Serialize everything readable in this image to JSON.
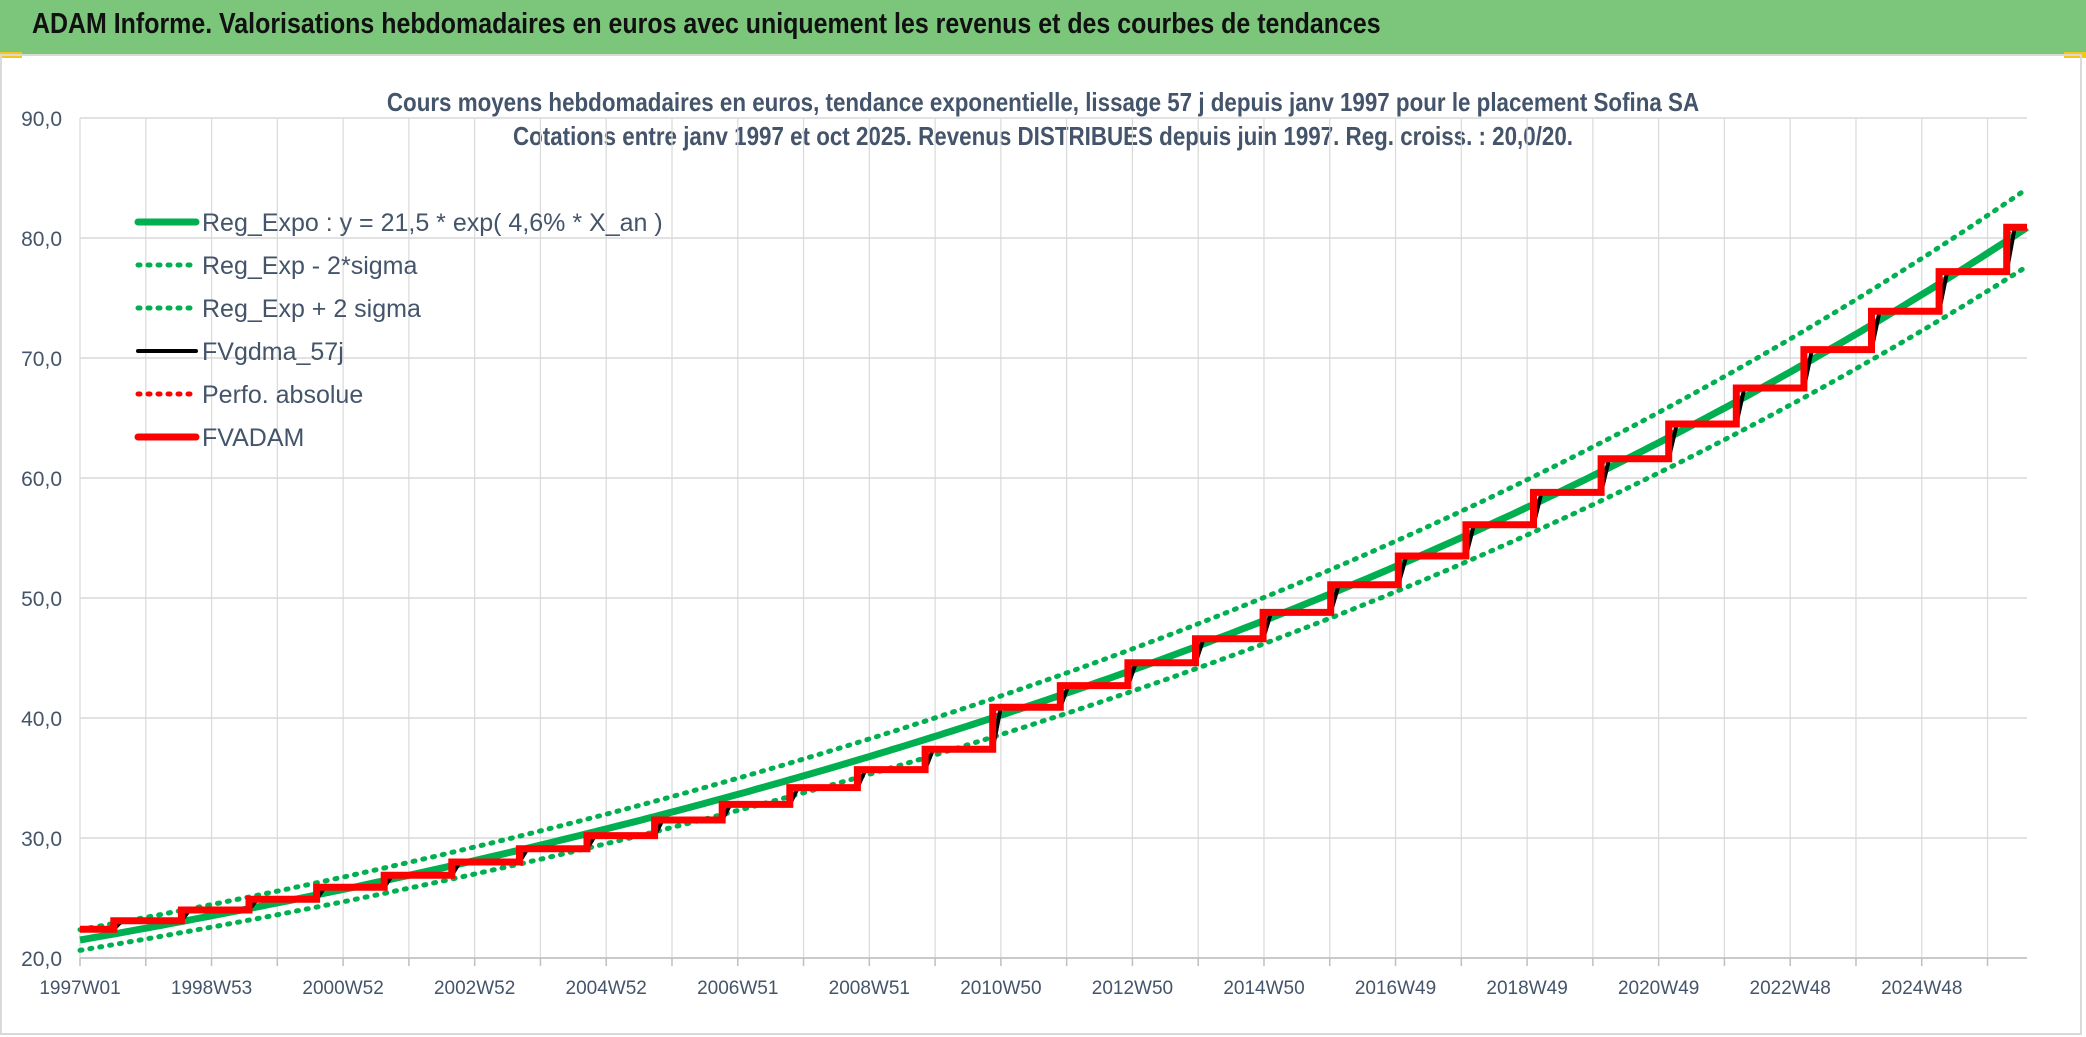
{
  "header": {
    "title": "ADAM Informe. Valorisations hebdomadaires en euros avec uniquement les revenus et des courbes de tendances"
  },
  "colors": {
    "banner": "#7bc67b",
    "reg_expo": "#00b050",
    "fvgdma": "#000000",
    "fvadam": "#ff0000",
    "grid": "#d9d9d9",
    "text": "#44546a"
  },
  "chart_data": {
    "type": "line",
    "title": "Cours moyens hebdomadaires en euros, tendance exponentielle, lissage 57 j depuis janv 1997 pour le placement Sofina SA",
    "subtitle": "Cotations entre janv 1997 et oct 2025. Revenus DISTRIBUES depuis juin 1997. Reg. croiss. : 20,0/20.",
    "xlabel": "",
    "ylabel": "",
    "ylim": [
      20,
      90
    ],
    "yticks": [
      "20,0",
      "30,0",
      "40,0",
      "50,0",
      "60,0",
      "70,0",
      "80,0",
      "90,0"
    ],
    "x_range_years": [
      1997.0,
      2025.8
    ],
    "xtick_labels": [
      "1997W01",
      "1998W53",
      "2000W52",
      "2002W52",
      "2004W52",
      "2006W51",
      "2008W51",
      "2010W50",
      "2012W50",
      "2014W50",
      "2016W49",
      "2018W49",
      "2020W49",
      "2022W48",
      "2024W48"
    ],
    "grid": true,
    "legend_position": "top-left",
    "regression": {
      "a": 21.5,
      "rate": 0.046,
      "sigma_factor": 0.04
    },
    "series": [
      {
        "name": "Reg_Expo : y = 21,5 * exp( 4,6% *  X_an )",
        "style": "solid-thick",
        "color": "#00b050"
      },
      {
        "name": "Reg_Exp - 2*sigma",
        "style": "dotted",
        "color": "#00b050"
      },
      {
        "name": "Reg_Exp + 2 sigma",
        "style": "dotted",
        "color": "#00b050"
      },
      {
        "name": "FVgdma_57j",
        "style": "solid",
        "color": "#000000"
      },
      {
        "name": "Perfo. absolue",
        "style": "dotted",
        "color": "#ff0000"
      },
      {
        "name": "FVADAM",
        "style": "solid-thick-step",
        "color": "#ff0000"
      }
    ],
    "fvadam_steps": [
      {
        "x": 1997.0,
        "y": 22.4
      },
      {
        "x": 1997.5,
        "y": 23.1
      },
      {
        "x": 1998.5,
        "y": 24.0
      },
      {
        "x": 1999.5,
        "y": 24.9
      },
      {
        "x": 2000.5,
        "y": 25.9
      },
      {
        "x": 2001.5,
        "y": 26.9
      },
      {
        "x": 2002.5,
        "y": 28.0
      },
      {
        "x": 2003.5,
        "y": 29.1
      },
      {
        "x": 2004.5,
        "y": 30.2
      },
      {
        "x": 2005.5,
        "y": 31.5
      },
      {
        "x": 2006.5,
        "y": 32.8
      },
      {
        "x": 2007.5,
        "y": 34.2
      },
      {
        "x": 2008.5,
        "y": 35.7
      },
      {
        "x": 2009.5,
        "y": 37.4
      },
      {
        "x": 2010.5,
        "y": 40.9
      },
      {
        "x": 2011.5,
        "y": 42.7
      },
      {
        "x": 2012.5,
        "y": 44.6
      },
      {
        "x": 2013.5,
        "y": 46.6
      },
      {
        "x": 2014.5,
        "y": 48.8
      },
      {
        "x": 2015.5,
        "y": 51.1
      },
      {
        "x": 2016.5,
        "y": 53.5
      },
      {
        "x": 2017.5,
        "y": 56.1
      },
      {
        "x": 2018.5,
        "y": 58.8
      },
      {
        "x": 2019.5,
        "y": 61.6
      },
      {
        "x": 2020.5,
        "y": 64.5
      },
      {
        "x": 2021.5,
        "y": 67.5
      },
      {
        "x": 2022.5,
        "y": 70.7
      },
      {
        "x": 2023.5,
        "y": 73.9
      },
      {
        "x": 2024.5,
        "y": 77.2
      },
      {
        "x": 2025.5,
        "y": 80.9
      }
    ],
    "x_end": 2025.8
  }
}
